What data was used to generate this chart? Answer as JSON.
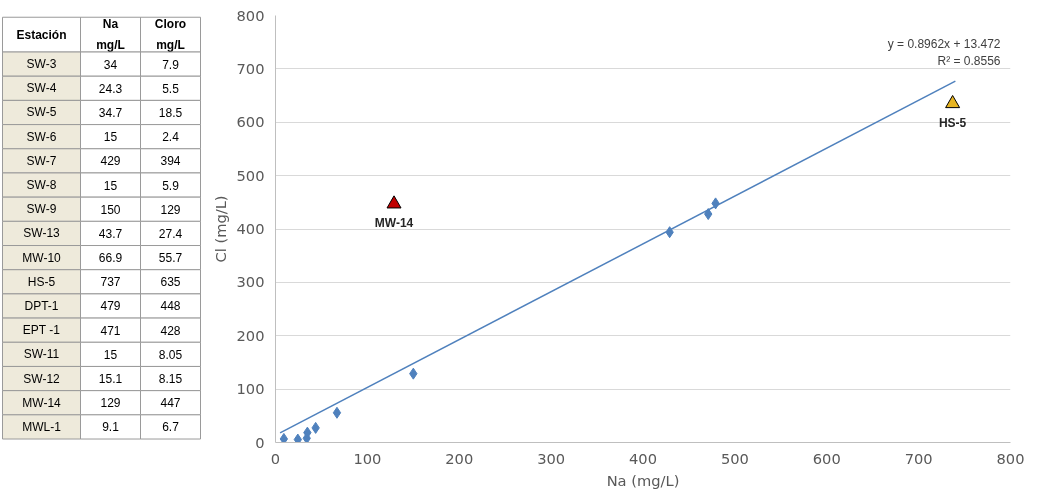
{
  "chart_data": [
    {
      "type": "other",
      "ylabel": "Estación",
      "data_labels": true,
      "categories": [
        "SW-3",
        "SW-4",
        "SW-5",
        "SW-6",
        "SW-7",
        "SW-8",
        "SW-9",
        "SW-13",
        "MW-10",
        "HS-5",
        "DPT-1",
        "EPT -1",
        "SW-11",
        "SW-12",
        "MW-14",
        "MWL-1"
      ],
      "series": [
        {
          "name": "Na\nmg/L",
          "values": [
            34,
            24.3,
            34.7,
            15,
            429,
            15,
            150,
            43.7,
            66.9,
            737,
            479,
            471,
            15,
            15.1,
            129,
            9.1
          ]
        },
        {
          "name": "Cloro\nmg/L",
          "values": [
            7.9,
            5.5,
            18.5,
            2.4,
            394,
            5.9,
            129,
            27.4,
            55.7,
            635,
            448,
            428,
            8.05,
            8.15,
            447,
            6.7
          ]
        }
      ]
    },
    {
      "type": "scatter",
      "xlabel": "Na (mg/L)",
      "ylabel": "Cl (mg/L)",
      "xlim": [
        0,
        800
      ],
      "ylim": [
        0,
        800
      ],
      "xticks": [
        0,
        100,
        200,
        300,
        400,
        500,
        600,
        700,
        800
      ],
      "yticks": [
        0,
        100,
        200,
        300,
        400,
        500,
        600,
        700,
        800
      ],
      "grid": "y",
      "annotations": [
        "y = 0.8962x + 13.472",
        "R² = 0.8556"
      ],
      "series": [
        {
          "color": "#4f81bd",
          "marker": "diamond",
          "x": [
            34,
            24.3,
            34.7,
            429,
            150,
            43.7,
            66.9,
            479,
            471,
            9.1
          ],
          "values": [
            7.9,
            5.5,
            18.5,
            394,
            129,
            27.4,
            55.7,
            448,
            428,
            6.7
          ]
        },
        {
          "name": "MW-14",
          "color": "#c00000",
          "marker": "triangle",
          "x": [
            129
          ],
          "values": [
            447
          ]
        },
        {
          "name": "HS-5",
          "color": "#e6b422",
          "marker": "triangle",
          "x": [
            737
          ],
          "values": [
            635
          ]
        },
        {
          "type": "line",
          "color": "#4f81bd",
          "marker": "none",
          "x": [
            5,
            740
          ],
          "values": [
            18,
            677
          ]
        }
      ]
    }
  ]
}
